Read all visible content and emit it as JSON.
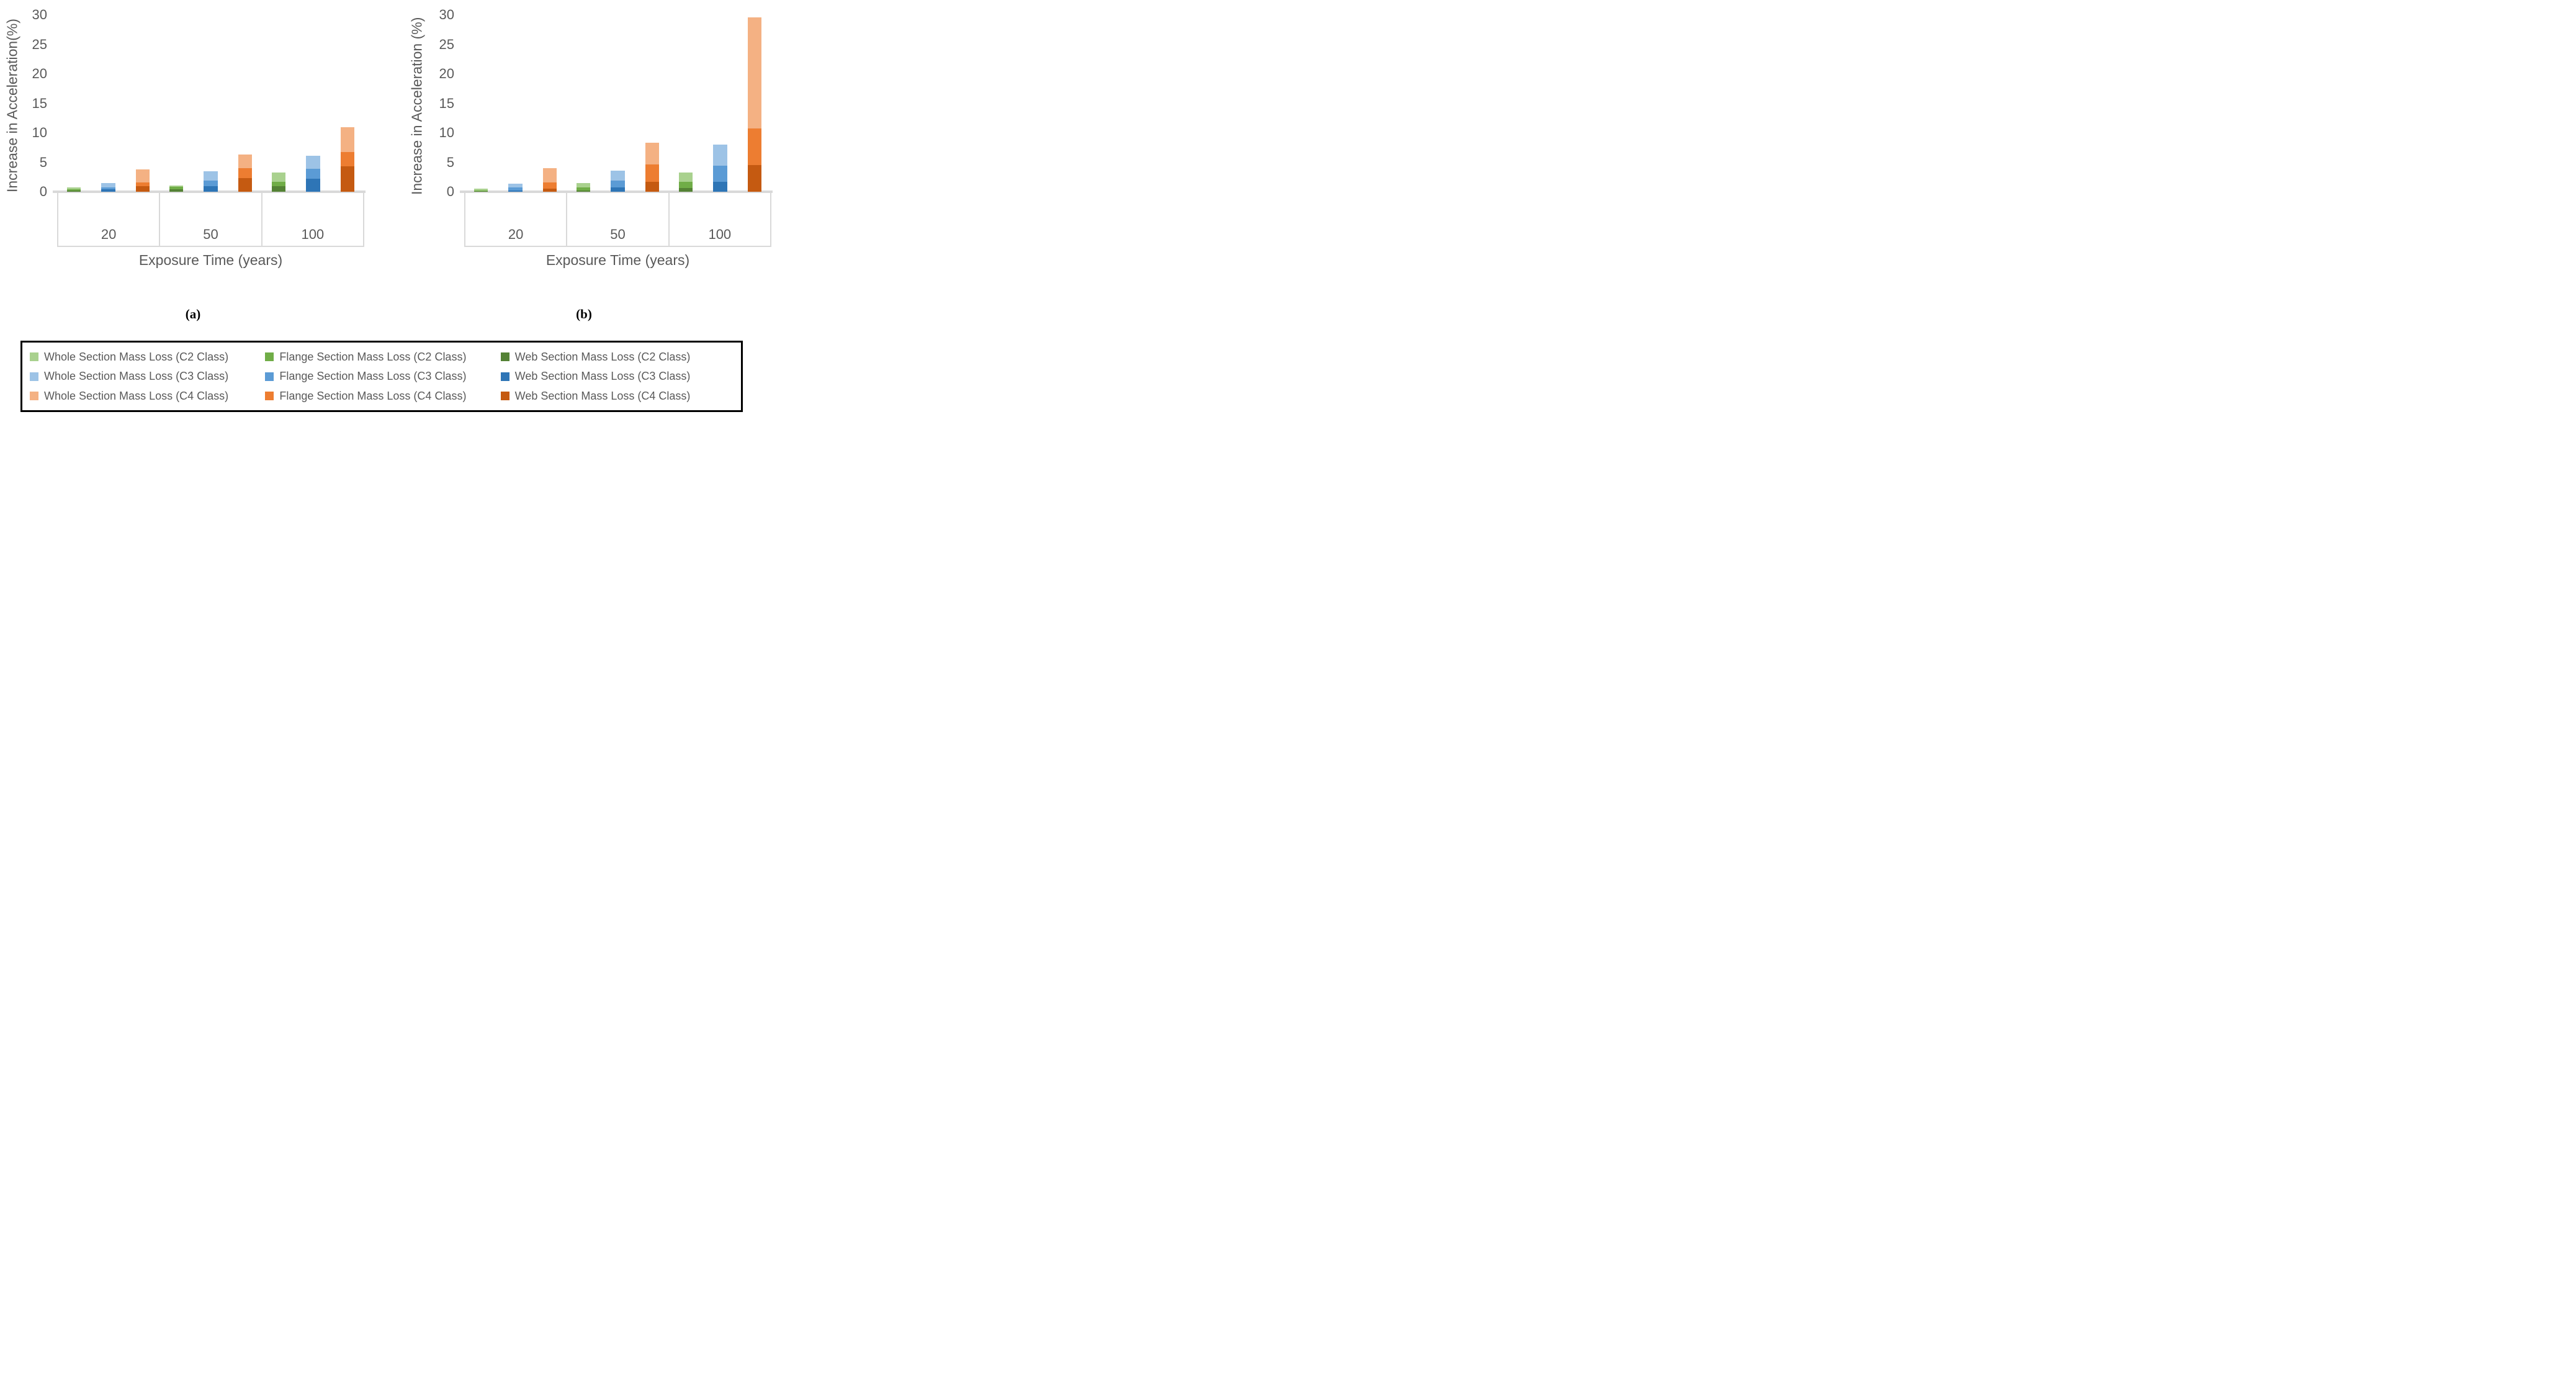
{
  "figure": {
    "caption_a": "(a)",
    "caption_b": "(b)"
  },
  "colors": {
    "whole_c2": "#A9D18E",
    "flange_c2": "#70AD47",
    "web_c2": "#548235",
    "whole_c3": "#9DC3E6",
    "flange_c3": "#5B9BD5",
    "web_c3": "#2E75B6",
    "whole_c4": "#F4B183",
    "flange_c4": "#ED7D31",
    "web_c4": "#C55A11",
    "axis_line": "#d9d9d9",
    "text": "#595959"
  },
  "chart_data": [
    {
      "type": "bar",
      "subtype": "overlapped-columns",
      "panel": "a",
      "ylabel": "Increase in Acceleration(%)",
      "xlabel": "Exposure Time (years)",
      "ylim": [
        0,
        30
      ],
      "yticks": [
        0,
        5,
        10,
        15,
        20,
        25,
        30
      ],
      "grid": "off",
      "categories": [
        "20",
        "50",
        "100"
      ],
      "series": [
        {
          "key": "whole-c2",
          "name": "Whole Section Mass Loss (C2 Class)",
          "color": "#A9D18E",
          "values": [
            0.7,
            1.1,
            3.3
          ]
        },
        {
          "key": "flange-c2",
          "name": "Flange Section Mass Loss (C2 Class)",
          "color": "#70AD47",
          "values": [
            0.45,
            0.8,
            1.7
          ]
        },
        {
          "key": "web-c2",
          "name": "Web Section Mass Loss (C2 Class)",
          "color": "#548235",
          "values": [
            0.25,
            0.45,
            0.9
          ]
        },
        {
          "key": "whole-c3",
          "name": "Whole Section Mass Loss (C3 Class)",
          "color": "#9DC3E6",
          "values": [
            1.5,
            3.5,
            6.1
          ]
        },
        {
          "key": "flange-c3",
          "name": "Flange Section Mass Loss (C3 Class)",
          "color": "#5B9BD5",
          "values": [
            0.75,
            1.9,
            3.9
          ]
        },
        {
          "key": "web-c3",
          "name": "Web Section Mass Loss (C3 Class)",
          "color": "#2E75B6",
          "values": [
            0.4,
            1.0,
            2.2
          ]
        },
        {
          "key": "whole-c4",
          "name": "Whole Section Mass Loss (C4 Class)",
          "color": "#F4B183",
          "values": [
            3.8,
            6.3,
            11.0
          ]
        },
        {
          "key": "flange-c4",
          "name": "Flange Section Mass Loss (C4 Class)",
          "color": "#ED7D31",
          "values": [
            1.6,
            4.0,
            6.7
          ]
        },
        {
          "key": "web-c4",
          "name": "Web Section Mass Loss (C4 Class)",
          "color": "#C55A11",
          "values": [
            0.9,
            2.3,
            4.3
          ]
        }
      ]
    },
    {
      "type": "bar",
      "subtype": "overlapped-columns",
      "panel": "b",
      "ylabel": "Increase in Acceleration (%)",
      "xlabel": "Exposure Time (years)",
      "ylim": [
        0,
        30
      ],
      "yticks": [
        0,
        5,
        10,
        15,
        20,
        25,
        30
      ],
      "grid": "off",
      "categories": [
        "20",
        "50",
        "100"
      ],
      "series": [
        {
          "key": "whole-c2",
          "name": "Whole Section Mass Loss (C2 Class)",
          "color": "#A9D18E",
          "values": [
            0.55,
            1.5,
            3.3
          ]
        },
        {
          "key": "flange-c2",
          "name": "Flange Section Mass Loss (C2 Class)",
          "color": "#70AD47",
          "values": [
            0.25,
            0.75,
            1.65
          ]
        },
        {
          "key": "web-c2",
          "name": "Web Section Mass Loss (C2 Class)",
          "color": "#548235",
          "values": [
            0.1,
            0.25,
            0.6
          ]
        },
        {
          "key": "whole-c3",
          "name": "Whole Section Mass Loss (C3 Class)",
          "color": "#9DC3E6",
          "values": [
            1.35,
            3.55,
            8.05
          ]
        },
        {
          "key": "flange-c3",
          "name": "Flange Section Mass Loss (C3 Class)",
          "color": "#5B9BD5",
          "values": [
            0.7,
            1.85,
            4.45
          ]
        },
        {
          "key": "web-c3",
          "name": "Web Section Mass Loss (C3 Class)",
          "color": "#2E75B6",
          "values": [
            0.25,
            0.7,
            1.65
          ]
        },
        {
          "key": "whole-c4",
          "name": "Whole Section Mass Loss (C4 Class)",
          "color": "#F4B183",
          "values": [
            4.0,
            8.35,
            29.6
          ]
        },
        {
          "key": "flange-c4",
          "name": "Flange Section Mass Loss (C4 Class)",
          "color": "#ED7D31",
          "values": [
            1.6,
            4.6,
            10.7
          ]
        },
        {
          "key": "web-c4",
          "name": "Web Section Mass Loss (C4 Class)",
          "color": "#C55A11",
          "values": [
            0.55,
            1.7,
            4.5
          ]
        }
      ]
    }
  ],
  "legend": {
    "entries": [
      {
        "label": "Whole Section Mass Loss (C2 Class)",
        "color": "#A9D18E",
        "key": "whole-c2"
      },
      {
        "label": "Flange Section Mass Loss (C2 Class)",
        "color": "#70AD47",
        "key": "flange-c2"
      },
      {
        "label": "Web Section Mass Loss (C2 Class)",
        "color": "#548235",
        "key": "web-c2"
      },
      {
        "label": "Whole Section Mass Loss (C3 Class)",
        "color": "#9DC3E6",
        "key": "whole-c3"
      },
      {
        "label": "Flange Section Mass Loss (C3 Class)",
        "color": "#5B9BD5",
        "key": "flange-c3"
      },
      {
        "label": "Web Section Mass Loss (C3 Class)",
        "color": "#2E75B6",
        "key": "web-c3"
      },
      {
        "label": "Whole Section Mass Loss (C4 Class)",
        "color": "#F4B183",
        "key": "whole-c4"
      },
      {
        "label": "Flange Section Mass Loss (C4 Class)",
        "color": "#ED7D31",
        "key": "flange-c4"
      },
      {
        "label": "Web Section Mass Loss (C4 Class)",
        "color": "#C55A11",
        "key": "web-c4"
      }
    ]
  }
}
